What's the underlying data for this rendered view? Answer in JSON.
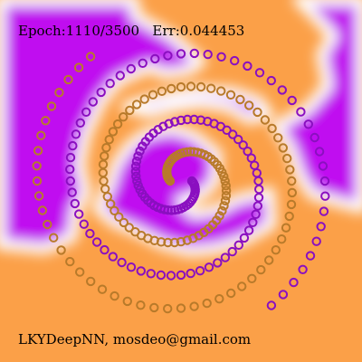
{
  "status": {
    "epoch_label": "Epoch:",
    "epoch": "1110/3500",
    "err_label": "Err:",
    "err": "0.044453"
  },
  "credit": "LKYDeepNN, mosdeo@gmail.com",
  "colors": {
    "class_a": "#c010f0",
    "class_b": "#fba048",
    "boundary": "#ffffff",
    "point_a": "#8a0fc0",
    "point_b": "#b87a2a"
  },
  "chart_data": {
    "type": "scatter",
    "series": [
      {
        "color": "#8a0fc0",
        "turns": 2.15,
        "points": 130,
        "start_angle_deg": 0
      },
      {
        "color": "#b87a2a",
        "turns": 2.15,
        "points": 130,
        "start_angle_deg": 180
      }
    ]
  }
}
